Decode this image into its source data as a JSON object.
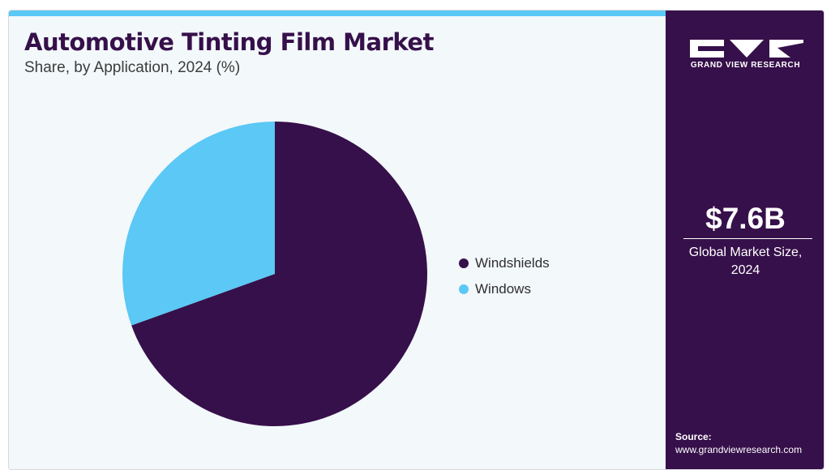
{
  "header": {
    "title": "Automotive Tinting Film Market",
    "subtitle": "Share, by Application, 2024 (%)"
  },
  "colors": {
    "accent_bar": "#5bc8f5",
    "sidebar_bg": "#36104a",
    "windshields": "#36104a",
    "windows": "#5bc8f5"
  },
  "chart_data": {
    "type": "pie",
    "categories": [
      "Windshields",
      "Windows"
    ],
    "values": [
      69.5,
      30.5
    ],
    "colors": [
      "#36104a",
      "#5bc8f5"
    ],
    "start_angle_deg": 0,
    "direction": "clockwise",
    "legend_position": "right"
  },
  "sidebar": {
    "logo_text": "GRAND VIEW RESEARCH",
    "stat_value": "$7.6B",
    "stat_label": "Global Market Size, 2024",
    "source_title": "Source:",
    "source_url": "www.grandviewresearch.com"
  }
}
